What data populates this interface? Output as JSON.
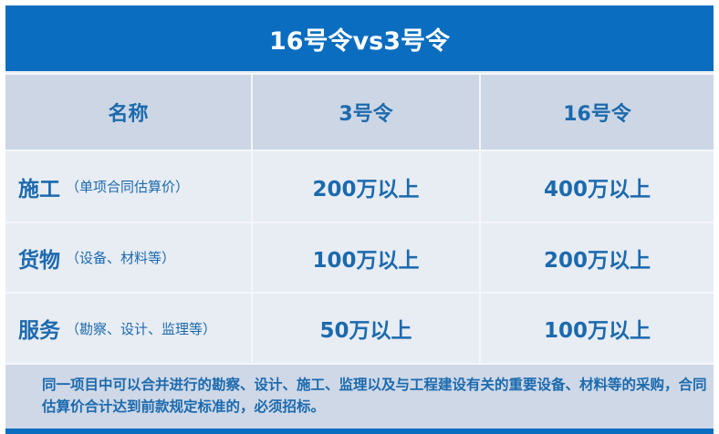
{
  "title": "16号令vs3号令",
  "headers": [
    "名称",
    "3号令",
    "16号令"
  ],
  "rows": [
    {
      "name": "施工",
      "detail": "（单项合同估算价）",
      "order3": "200万以上",
      "order16": "400万以上"
    },
    {
      "name": "货物",
      "detail": "（设备、材料等）",
      "order3": "100万以上",
      "order16": "200万以上"
    },
    {
      "name": "服务",
      "detail": "（勘察、设计、监理等）",
      "order3": "50万以上",
      "order16": "100万以上"
    }
  ],
  "note": "同一项目中可以合并进行的勘察、设计、施工、监理以及与工程建设有关的重要设备、材料等的采购，合同估算价合计达到前款规定标准的，必须招标。",
  "colors": {
    "header_blue": "#0b6dbf",
    "text_blue": "#1b6aae",
    "header_row_bg": "#cdd6e4",
    "row_bg": "#e8ecf3"
  }
}
